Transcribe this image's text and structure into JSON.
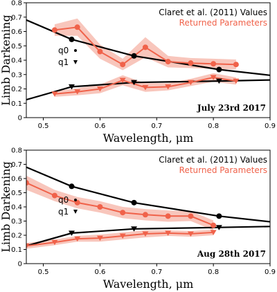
{
  "chart_data": [
    {
      "type": "line",
      "xlabel": "Wavelength, μm",
      "ylabel": "Limb Darkening",
      "xlim": [
        0.47,
        0.9
      ],
      "ylim": [
        0.0,
        0.8
      ],
      "xticks": [
        0.5,
        0.6,
        0.7,
        0.8,
        0.9
      ],
      "yticks": [
        0.0,
        0.1,
        0.2,
        0.3,
        0.4,
        0.5,
        0.6,
        0.7,
        0.8
      ],
      "legend": {
        "position": "top-right",
        "entries": [
          "Claret et al. (2011) Values",
          "Returned Parameters"
        ]
      },
      "marker_labels": {
        "q0": "q0",
        "q1": "q1"
      },
      "annotation": "July 23rd 2017",
      "claret_q0": {
        "x": [
          0.47,
          0.55,
          0.66,
          0.81,
          0.9
        ],
        "y": [
          0.68,
          0.545,
          0.43,
          0.335,
          0.295
        ]
      },
      "claret_q1": {
        "x": [
          0.47,
          0.55,
          0.66,
          0.81,
          0.9
        ],
        "y": [
          0.125,
          0.215,
          0.245,
          0.255,
          0.262
        ]
      },
      "returned_q0": {
        "x": [
          0.52,
          0.56,
          0.6,
          0.64,
          0.68,
          0.72,
          0.76,
          0.8,
          0.84
        ],
        "y": [
          0.61,
          0.63,
          0.46,
          0.37,
          0.49,
          0.39,
          0.38,
          0.375,
          0.37
        ],
        "err": [
          0.04,
          0.06,
          0.05,
          0.04,
          0.07,
          0.04,
          0.035,
          0.035,
          0.035
        ]
      },
      "returned_q1": {
        "x": [
          0.52,
          0.56,
          0.6,
          0.64,
          0.68,
          0.72,
          0.76,
          0.8,
          0.84
        ],
        "y": [
          0.165,
          0.18,
          0.2,
          0.26,
          0.21,
          0.215,
          0.245,
          0.28,
          0.255
        ],
        "err": [
          0.02,
          0.025,
          0.03,
          0.035,
          0.03,
          0.025,
          0.025,
          0.03,
          0.025
        ]
      }
    },
    {
      "type": "line",
      "xlabel": "Wavelength, μm",
      "ylabel": "Limb Darkening",
      "xlim": [
        0.47,
        0.9
      ],
      "ylim": [
        0.0,
        0.8
      ],
      "xticks": [
        0.5,
        0.6,
        0.7,
        0.8,
        0.9
      ],
      "yticks": [
        0.0,
        0.1,
        0.2,
        0.3,
        0.4,
        0.5,
        0.6,
        0.7,
        0.8
      ],
      "legend": {
        "position": "top-right",
        "entries": [
          "Claret et al. (2011) Values",
          "Returned Parameters"
        ]
      },
      "marker_labels": {
        "q0": "q0",
        "q1": "q1"
      },
      "annotation": "Aug 28th 2017",
      "claret_q0": {
        "x": [
          0.47,
          0.55,
          0.66,
          0.81,
          0.9
        ],
        "y": [
          0.68,
          0.545,
          0.43,
          0.335,
          0.295
        ]
      },
      "claret_q1": {
        "x": [
          0.47,
          0.55,
          0.66,
          0.81,
          0.9
        ],
        "y": [
          0.125,
          0.215,
          0.245,
          0.255,
          0.262
        ]
      },
      "returned_q0": {
        "x": [
          0.47,
          0.52,
          0.56,
          0.6,
          0.64,
          0.68,
          0.72,
          0.76,
          0.8
        ],
        "y": [
          0.57,
          0.48,
          0.43,
          0.4,
          0.36,
          0.345,
          0.335,
          0.335,
          0.27
        ],
        "err": [
          0.05,
          0.04,
          0.04,
          0.04,
          0.04,
          0.04,
          0.04,
          0.035,
          0.035
        ]
      },
      "returned_q1": {
        "x": [
          0.47,
          0.52,
          0.56,
          0.6,
          0.64,
          0.68,
          0.72,
          0.76,
          0.8
        ],
        "y": [
          0.125,
          0.15,
          0.175,
          0.18,
          0.195,
          0.21,
          0.215,
          0.21,
          0.22
        ],
        "err": [
          0.02,
          0.02,
          0.02,
          0.025,
          0.025,
          0.025,
          0.02,
          0.02,
          0.02
        ]
      }
    }
  ],
  "colors": {
    "claret": "#000000",
    "returned": "#f0624a",
    "band": "#f6b3a6"
  }
}
